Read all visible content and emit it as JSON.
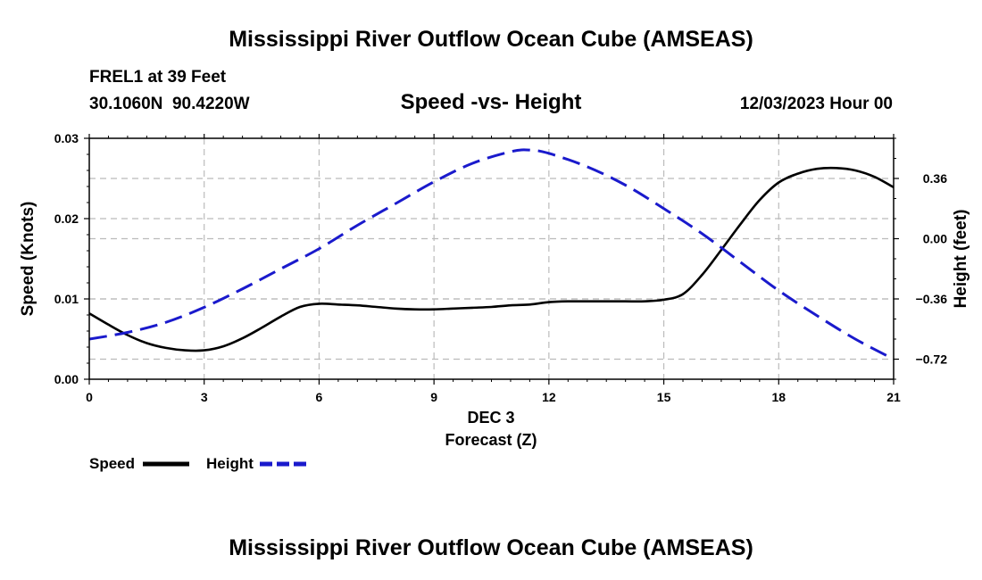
{
  "page": {
    "title_top": "Mississippi River Outflow Ocean Cube (AMSEAS)",
    "station_label": "FREL1 at 39 Feet",
    "coords": "30.1060N  90.4220W",
    "chart_subtitle": "Speed -vs- Height",
    "datetime": "12/03/2023 Hour 00",
    "date_label": "DEC 3",
    "title_bottom": "Mississippi River Outflow Ocean Cube (AMSEAS)"
  },
  "legend": {
    "speed_label": "Speed",
    "height_label": "Height"
  },
  "colors": {
    "speed": "#000000",
    "height": "#1a1acc",
    "grid": "#bbbbbb"
  },
  "chart_data": {
    "type": "line",
    "title": "Speed -vs- Height",
    "xlabel": "Forecast (Z)",
    "ylabel": "Speed (Knots)",
    "y2label": "Height (feet)",
    "xlim": [
      0,
      21
    ],
    "ylim": [
      0,
      0.03
    ],
    "y2lim": [
      -0.84,
      0.6
    ],
    "xticks": [
      0,
      3,
      6,
      9,
      12,
      15,
      18,
      21
    ],
    "xtick_labels": [
      "0",
      "3",
      "6",
      "9",
      "12",
      "15",
      "18",
      "21"
    ],
    "yticks": [
      0.0,
      0.01,
      0.02,
      0.03
    ],
    "ytick_labels": [
      "0.00",
      "0.01",
      "0.02",
      "0.03"
    ],
    "y2ticks": [
      0.36,
      0.0,
      -0.36,
      -0.72
    ],
    "y2tick_labels": [
      "0.36",
      "0.00",
      "−0.36",
      "−0.72"
    ],
    "series": [
      {
        "name": "Speed",
        "axis": "left",
        "x": [
          0,
          0.5,
          1,
          1.5,
          2,
          2.5,
          3,
          3.5,
          4,
          4.5,
          5,
          5.5,
          6,
          6.5,
          7,
          7.5,
          8,
          8.5,
          9,
          9.5,
          10,
          10.5,
          11,
          11.5,
          12,
          12.5,
          13,
          13.5,
          14,
          14.5,
          15,
          15.5,
          16,
          16.5,
          17,
          17.5,
          18,
          18.5,
          19,
          19.5,
          20,
          20.5,
          21
        ],
        "values": [
          0.0082,
          0.0068,
          0.0055,
          0.0045,
          0.0039,
          0.0036,
          0.0036,
          0.0041,
          0.0051,
          0.0064,
          0.0078,
          0.009,
          0.0094,
          0.0093,
          0.0092,
          0.009,
          0.0088,
          0.0087,
          0.0087,
          0.0088,
          0.0089,
          0.009,
          0.0092,
          0.0093,
          0.0096,
          0.0097,
          0.0097,
          0.0097,
          0.0097,
          0.0097,
          0.0099,
          0.0106,
          0.013,
          0.0161,
          0.0193,
          0.0223,
          0.0245,
          0.0256,
          0.0262,
          0.0263,
          0.026,
          0.0252,
          0.0239
        ]
      },
      {
        "name": "Height",
        "axis": "right",
        "x": [
          0,
          1,
          2,
          3,
          4,
          5,
          6,
          7,
          8,
          9,
          10,
          11,
          11.5,
          12,
          13,
          14,
          15,
          16,
          17,
          18,
          19,
          20,
          21
        ],
        "values": [
          -0.6,
          -0.56,
          -0.5,
          -0.41,
          -0.3,
          -0.18,
          -0.06,
          0.08,
          0.21,
          0.34,
          0.45,
          0.52,
          0.53,
          0.51,
          0.43,
          0.32,
          0.18,
          0.03,
          -0.14,
          -0.31,
          -0.46,
          -0.6,
          -0.72
        ]
      }
    ]
  }
}
